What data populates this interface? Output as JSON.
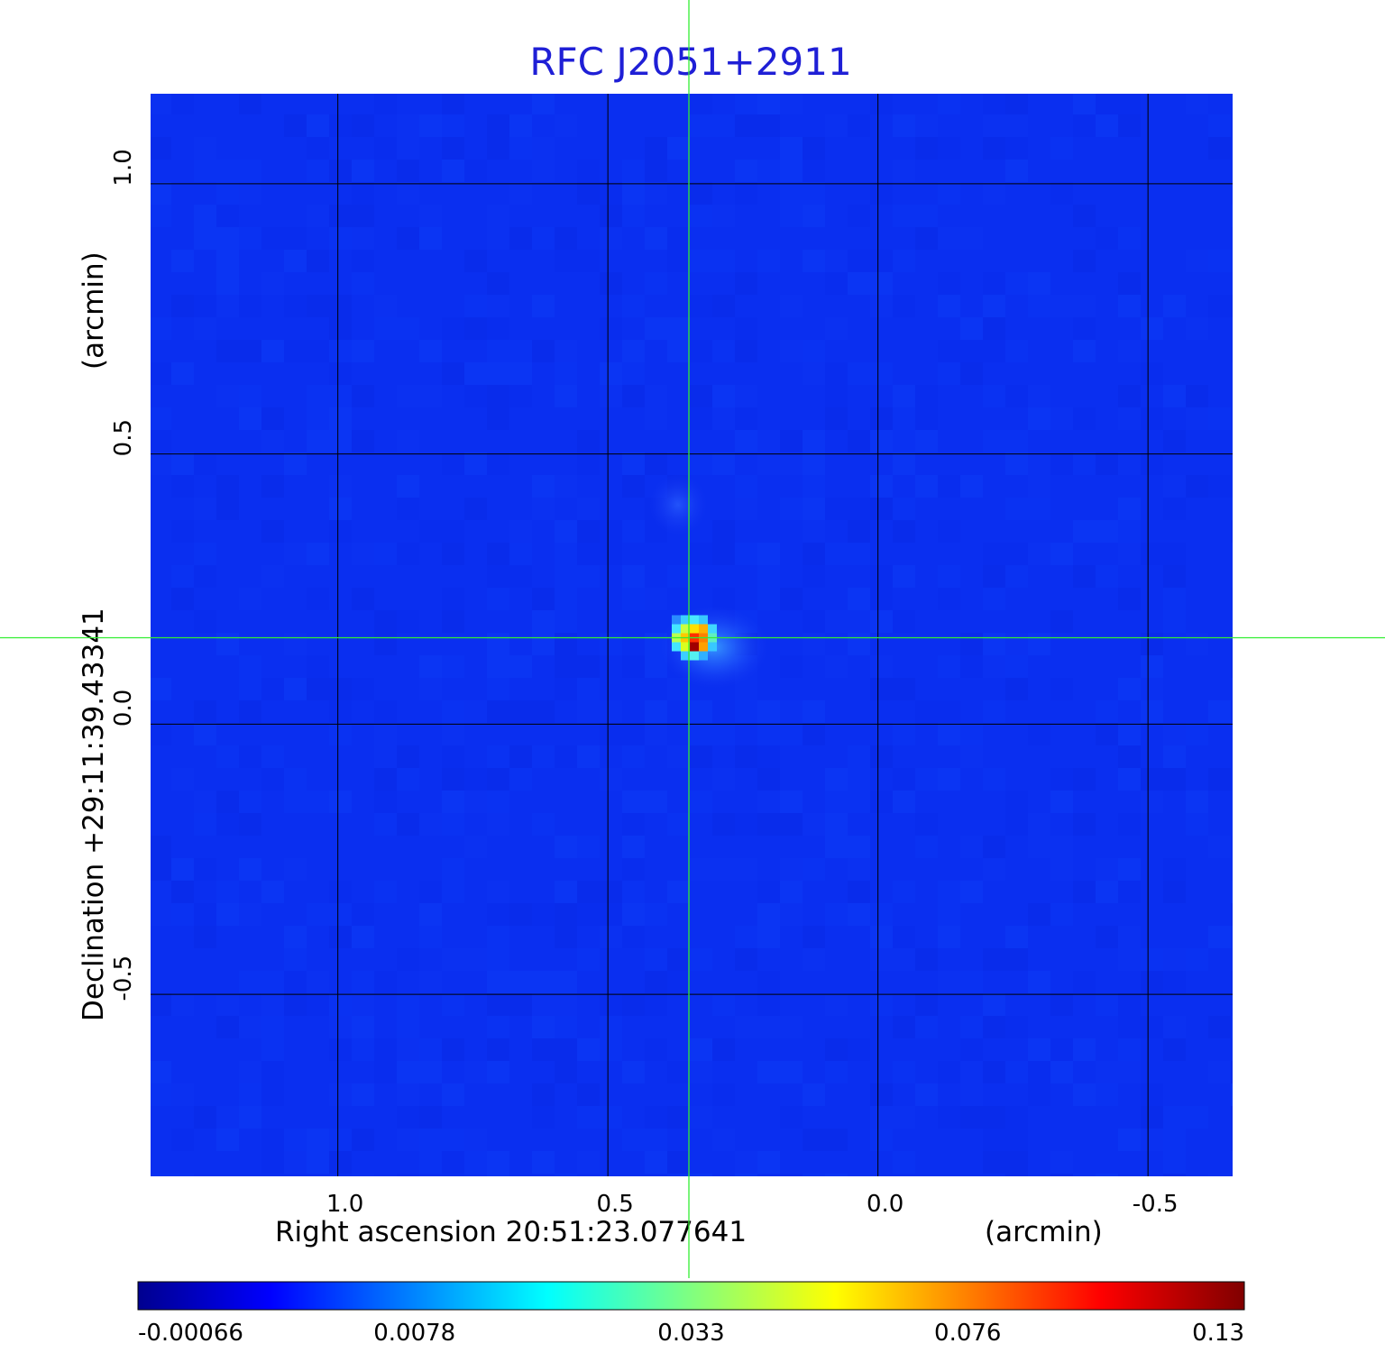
{
  "chart_data": {
    "type": "heatmap",
    "title": "RFC J2051+2911",
    "xlabel": "Right ascension  20:51:23.077641",
    "xunit": "(arcmin)",
    "ylabel": "Declination  +29:11:39.43341",
    "yunit": "(arcmin)",
    "x_ticks": [
      {
        "value": 1.0,
        "label": "1.0"
      },
      {
        "value": 0.5,
        "label": "0.5"
      },
      {
        "value": 0.0,
        "label": "0.0"
      },
      {
        "value": -0.5,
        "label": "-0.5"
      }
    ],
    "y_ticks": [
      {
        "value": 1.0,
        "label": "1.0"
      },
      {
        "value": 0.5,
        "label": "0.5"
      },
      {
        "value": 0.0,
        "label": "0.0"
      },
      {
        "value": -0.5,
        "label": "-0.5"
      }
    ],
    "xlim": [
      1.35,
      -0.66
    ],
    "ylim": [
      -0.84,
      1.17
    ],
    "x_reversed": true,
    "grid": true,
    "crosshair": {
      "x": 0.35,
      "y": 0.16
    },
    "source": {
      "x": 0.34,
      "y": 0.16,
      "peak": 0.13
    },
    "background_level": 0.0,
    "colorbar": {
      "colormap": "jet",
      "ticks": [
        {
          "value": -0.00066,
          "label": "-0.00066"
        },
        {
          "value": 0.0078,
          "label": "0.0078"
        },
        {
          "value": 0.033,
          "label": "0.033"
        },
        {
          "value": 0.076,
          "label": "0.076"
        },
        {
          "value": 0.13,
          "label": "0.13"
        }
      ],
      "range": [
        -0.00066,
        0.13
      ]
    }
  },
  "colors": {
    "title": "#1f1fd6",
    "crosshair": "#33ee33",
    "grid": "#000000",
    "frame": "#ffffff",
    "background": "#0a2ff0"
  }
}
